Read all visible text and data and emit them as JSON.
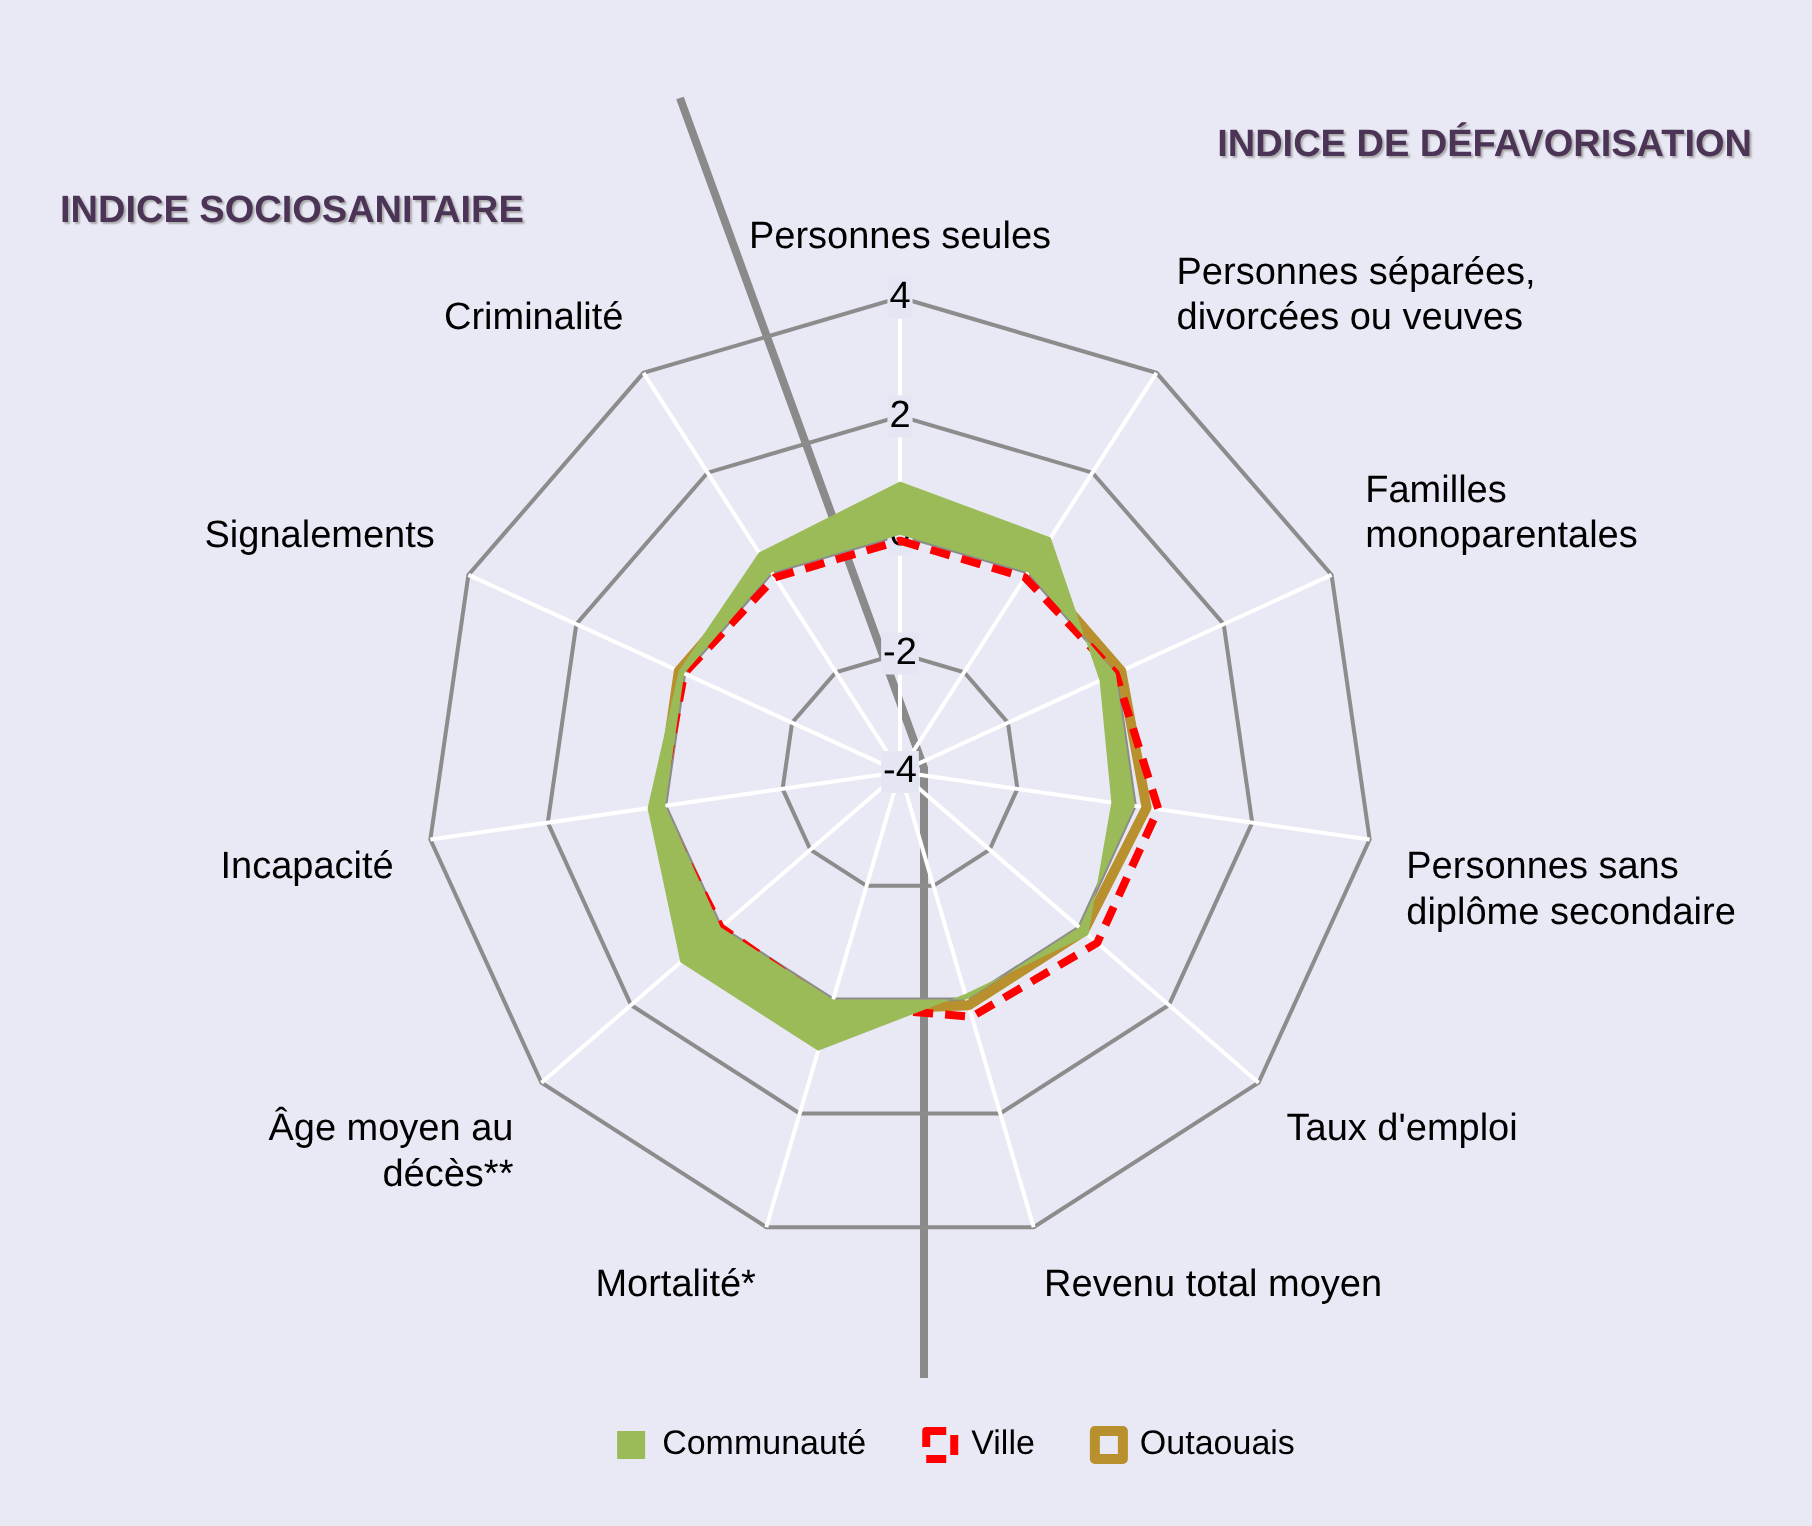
{
  "chart_data": {
    "type": "radar",
    "categories": [
      "Personnes seules",
      "Personnes séparées,\ndivorcées ou veuves",
      "Familles\nmonoparentales",
      "Personnes sans\ndiplôme secondaire",
      "Taux d'emploi",
      "Revenu total moyen",
      "Mortalité*",
      "Âge moyen au\ndécès**",
      "Incapacité",
      "Signalements",
      "Criminalité"
    ],
    "series": [
      {
        "name": "Communauté",
        "type": "area",
        "color": "#9bbb59",
        "values": [
          0.9,
          0.7,
          -0.3,
          -0.4,
          0.2,
          -0.1,
          0.9,
          0.9,
          0.3,
          0.1,
          0.4
        ]
      },
      {
        "name": "Ville",
        "color": "#ff0000",
        "line_style": "dashed",
        "values": [
          -0.1,
          -0.1,
          0,
          0.4,
          0.4,
          0.3,
          0.1,
          0,
          0.1,
          0,
          -0.1
        ]
      },
      {
        "name": "Outaouais",
        "color": "#b8902e",
        "line_style": "solid",
        "values": [
          0.1,
          0.1,
          0.1,
          0.2,
          0.1,
          0.1,
          0.2,
          0.1,
          0.1,
          0.1,
          0.1
        ]
      }
    ],
    "ylim": [
      -4,
      4
    ],
    "yticks": [
      -4,
      -2,
      0,
      2,
      4
    ],
    "legend": "bottom",
    "grid": true,
    "marker": "none",
    "annotations": [
      "INDICE SOCIOSANITAIRE",
      "INDICE DE DÉFAVORISATION"
    ]
  }
}
